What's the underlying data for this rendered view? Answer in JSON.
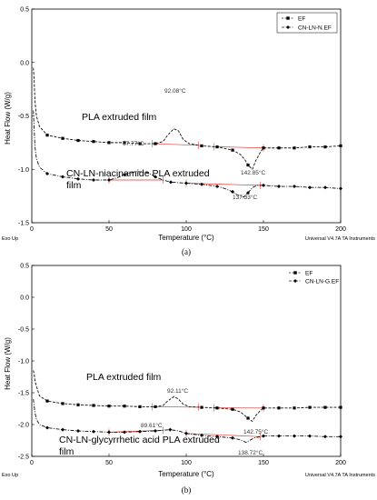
{
  "chart_data": [
    {
      "type": "line",
      "panel_label": "(a)",
      "xlabel": "Temperature (°C)",
      "ylabel": "Heat Flow (W/g)",
      "xlim": [
        0,
        200
      ],
      "ylim": [
        -1.5,
        0.5
      ],
      "xticks": [
        0,
        50,
        100,
        150,
        200
      ],
      "yticks": [
        0.5,
        0.0,
        -0.5,
        -1.0,
        -1.5
      ],
      "ytick_labels": [
        "0.5",
        "0.0",
        "-0.5",
        "-1.0",
        "-1.5"
      ],
      "legend": [
        "EF",
        "CN-LN-N.EF"
      ],
      "footer_left": "Exo Up",
      "footer_right": "Universal V4.7A TA Instruments",
      "series": [
        {
          "name": "EF",
          "label": "PLA extruded film",
          "x": [
            1,
            1.5,
            2,
            3,
            5,
            10,
            20,
            30,
            40,
            50,
            60,
            70,
            80,
            85,
            88,
            92,
            95,
            98,
            102,
            110,
            120,
            130,
            135,
            138,
            140,
            142.85,
            145,
            148,
            150,
            160,
            170,
            180,
            190,
            200
          ],
          "y": [
            -0.05,
            -0.15,
            -0.35,
            -0.5,
            -0.6,
            -0.68,
            -0.71,
            -0.73,
            -0.74,
            -0.75,
            -0.75,
            -0.76,
            -0.76,
            -0.74,
            -0.68,
            -0.62,
            -0.64,
            -0.72,
            -0.76,
            -0.78,
            -0.79,
            -0.82,
            -0.86,
            -0.91,
            -0.96,
            -1.0,
            -0.92,
            -0.84,
            -0.8,
            -0.8,
            -0.8,
            -0.79,
            -0.79,
            -0.78
          ]
        },
        {
          "name": "CN-LN-N.EF",
          "label": "CN-LN-niacinamide PLA extruded film",
          "x": [
            1,
            1.5,
            2,
            3,
            5,
            10,
            20,
            30,
            40,
            50,
            55,
            60,
            67.77,
            75,
            80,
            85,
            90,
            100,
            110,
            120,
            125,
            130,
            133,
            137.33,
            140,
            143,
            146,
            150,
            160,
            170,
            180,
            190,
            200
          ],
          "y": [
            -0.45,
            -0.6,
            -0.78,
            -0.9,
            -0.98,
            -1.04,
            -1.07,
            -1.09,
            -1.1,
            -1.1,
            -1.08,
            -1.05,
            -1.02,
            -1.03,
            -1.07,
            -1.1,
            -1.12,
            -1.13,
            -1.14,
            -1.16,
            -1.18,
            -1.21,
            -1.24,
            -1.26,
            -1.22,
            -1.17,
            -1.15,
            -1.15,
            -1.16,
            -1.16,
            -1.17,
            -1.17,
            -1.18
          ]
        }
      ],
      "annotations": [
        "92.08°C",
        "142.85°C",
        "67.77°C",
        "137.33°C"
      ]
    },
    {
      "type": "line",
      "panel_label": "(b)",
      "xlabel": "Temperature (°C)",
      "ylabel": "Heat Flow (W/g)",
      "xlim": [
        0,
        200
      ],
      "ylim": [
        -2.5,
        0.5
      ],
      "xticks": [
        0,
        50,
        100,
        150,
        200
      ],
      "yticks": [
        0.5,
        0.0,
        -0.5,
        -1.0,
        -1.5,
        -2.0,
        -2.5
      ],
      "ytick_labels": [
        "0.5",
        "0.0",
        "-0.5",
        "-1.0",
        "-1.5",
        "-2.0",
        "-2.5"
      ],
      "legend": [
        "EF",
        "CN-LN-G.EF"
      ],
      "footer_left": "Exo Up",
      "footer_right": "Universal V4.7A TA Instruments",
      "series": [
        {
          "name": "EF",
          "label": "PLA extruded film",
          "x": [
            1,
            1.5,
            2,
            3,
            5,
            10,
            20,
            30,
            40,
            50,
            60,
            70,
            80,
            85,
            88,
            92.11,
            95,
            98,
            102,
            110,
            120,
            130,
            135,
            138,
            140,
            142.75,
            145,
            148,
            150,
            160,
            170,
            180,
            190,
            200
          ],
          "y": [
            -1.15,
            -1.2,
            -1.3,
            -1.4,
            -1.55,
            -1.63,
            -1.67,
            -1.69,
            -1.7,
            -1.71,
            -1.71,
            -1.72,
            -1.72,
            -1.7,
            -1.63,
            -1.56,
            -1.6,
            -1.68,
            -1.72,
            -1.73,
            -1.74,
            -1.76,
            -1.8,
            -1.86,
            -1.9,
            -1.95,
            -1.86,
            -1.78,
            -1.74,
            -1.74,
            -1.74,
            -1.73,
            -1.73,
            -1.73
          ]
        },
        {
          "name": "CN-LN-G.EF",
          "label": "CN-LN-glycyrrhetic acid PLA extruded film",
          "x": [
            1,
            1.5,
            2,
            3,
            5,
            10,
            20,
            30,
            40,
            50,
            60,
            70,
            80,
            89.61,
            95,
            100,
            110,
            120,
            125,
            130,
            135,
            138.72,
            141,
            144,
            148,
            150,
            160,
            170,
            180,
            190,
            200
          ],
          "y": [
            -1.6,
            -1.7,
            -1.8,
            -1.92,
            -2.0,
            -2.05,
            -2.08,
            -2.1,
            -2.11,
            -2.12,
            -2.12,
            -2.11,
            -2.1,
            -2.08,
            -2.1,
            -2.14,
            -2.17,
            -2.19,
            -2.2,
            -2.21,
            -2.24,
            -2.28,
            -2.25,
            -2.21,
            -2.19,
            -2.18,
            -2.18,
            -2.18,
            -2.18,
            -2.19,
            -2.19
          ]
        }
      ],
      "annotations": [
        "92.11°C",
        "142.75°C",
        "89.61°C",
        "138.72°C"
      ]
    }
  ]
}
